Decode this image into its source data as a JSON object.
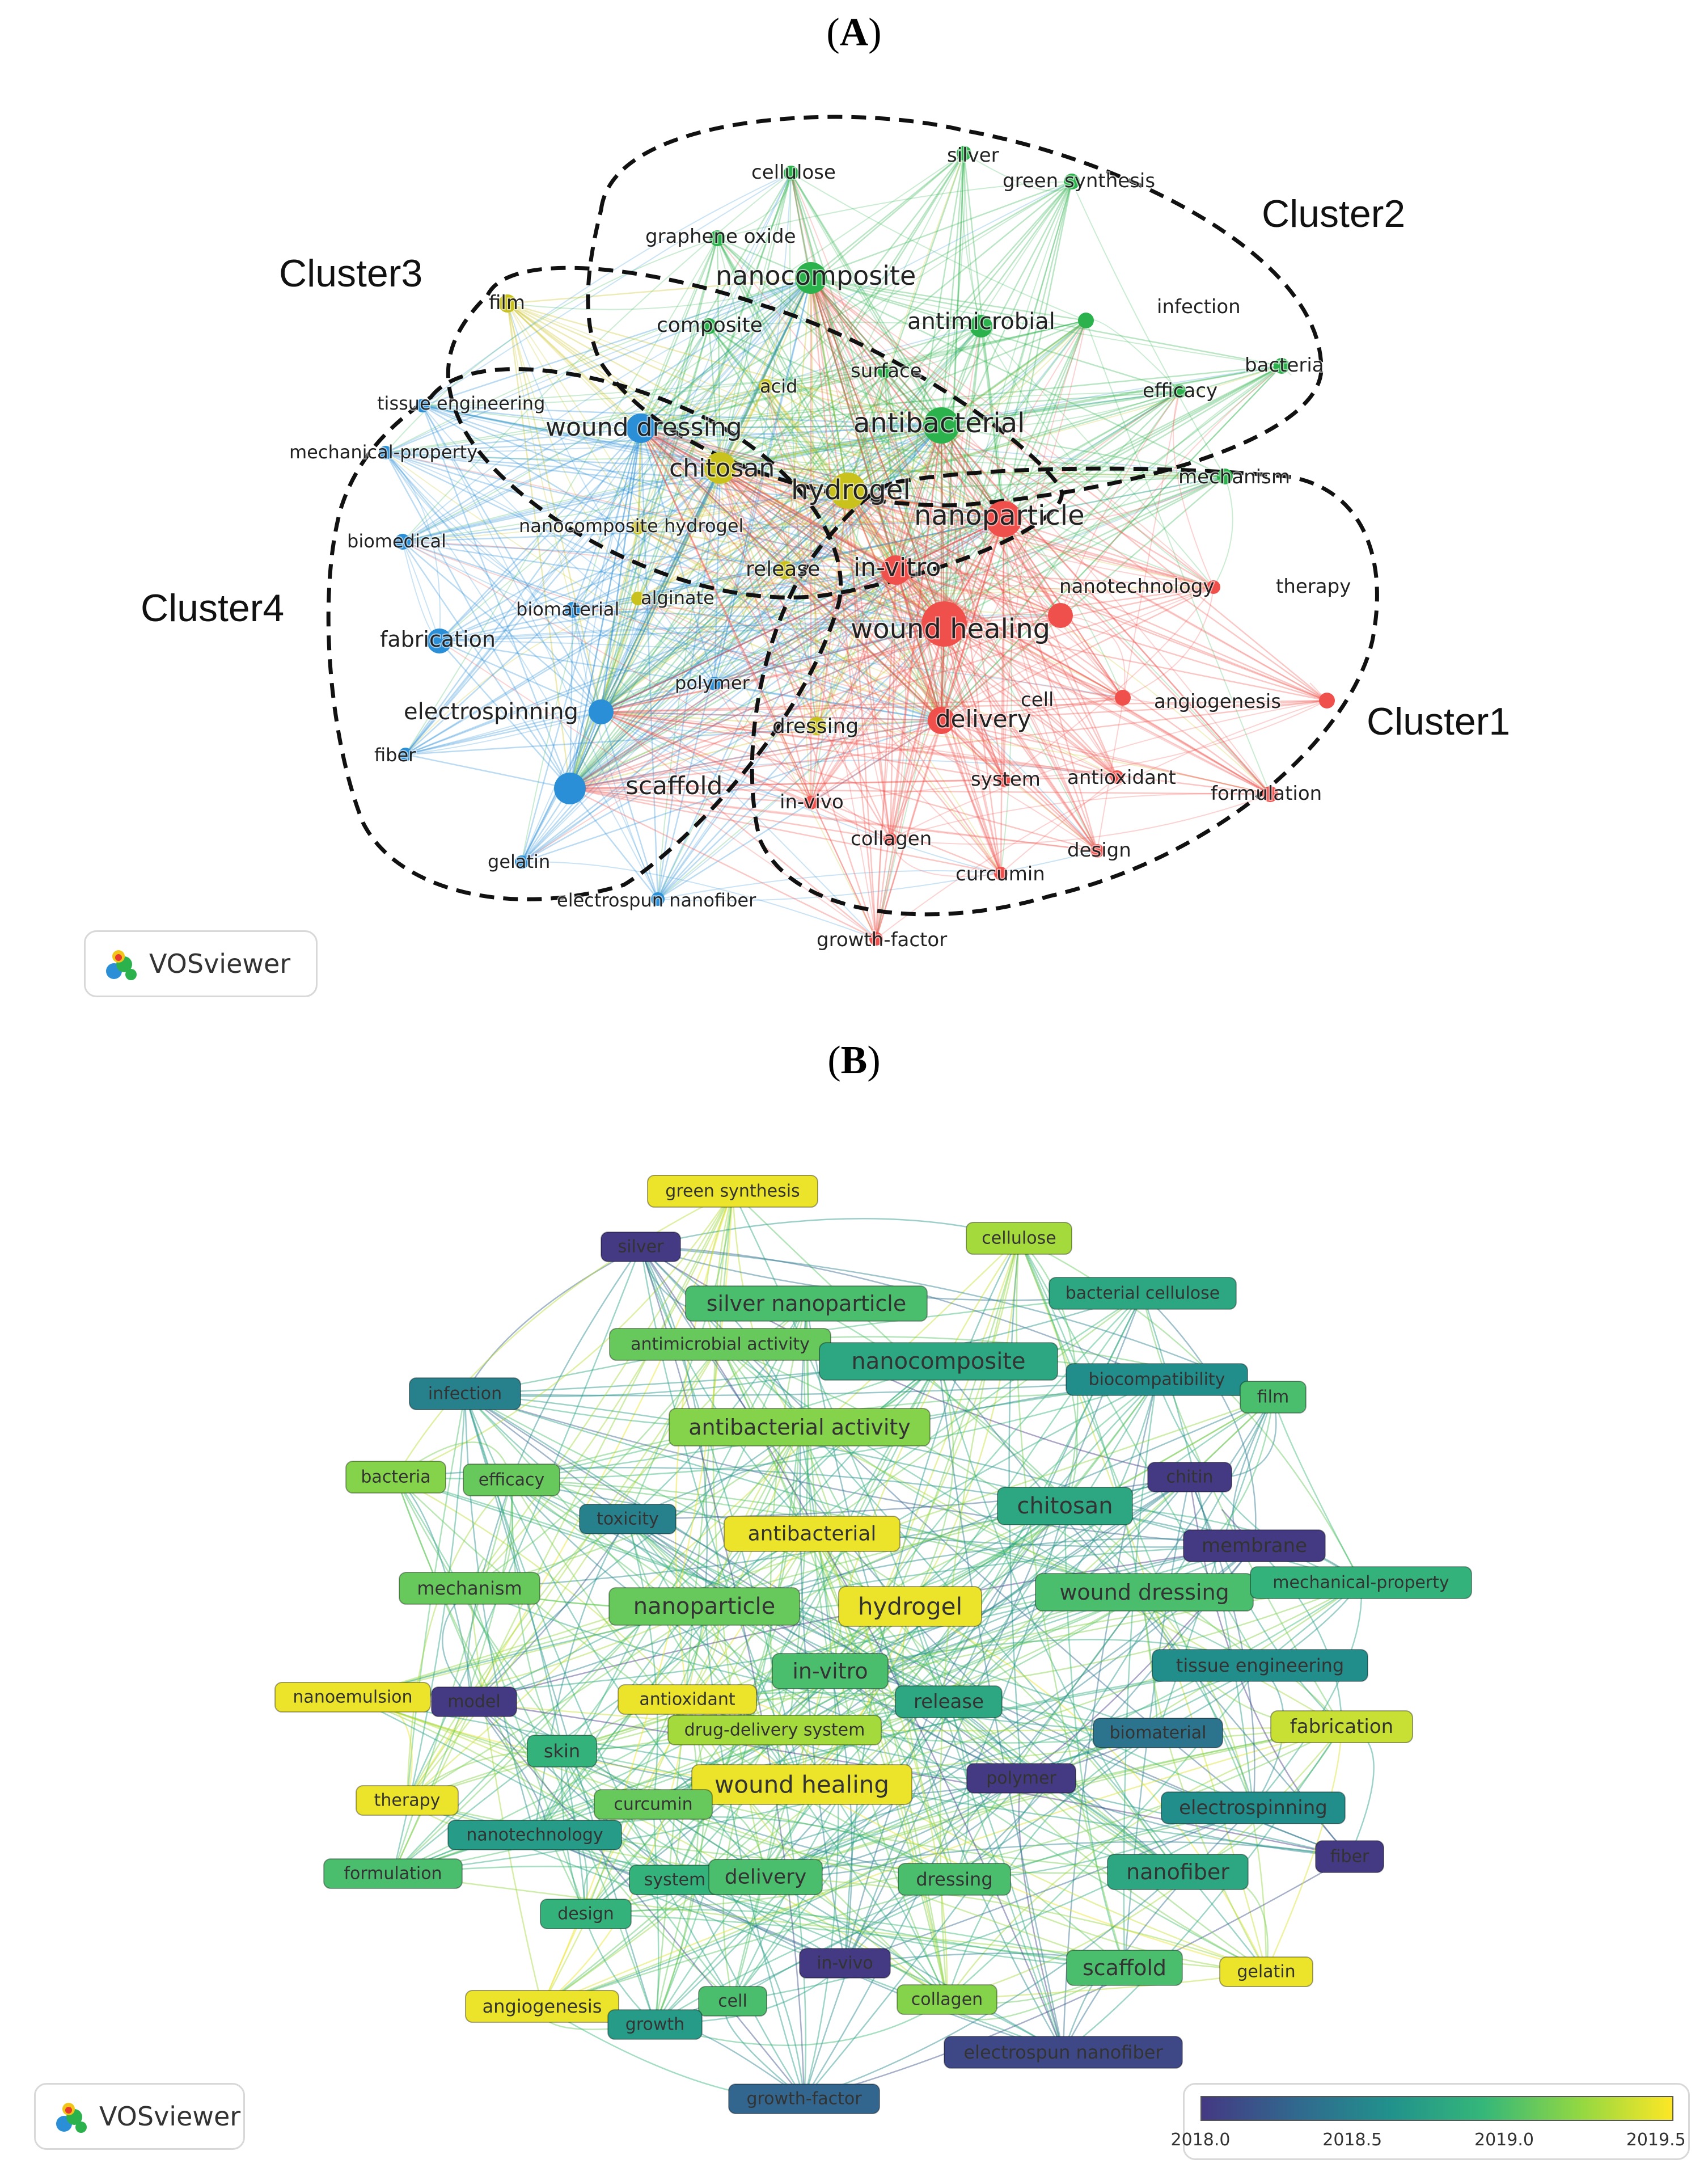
{
  "panel_a": {
    "title_letter": "A",
    "clusters": [
      "Cluster1",
      "Cluster2",
      "Cluster3",
      "Cluster4"
    ],
    "cluster_colors": {
      "cluster1": "#f0504c",
      "cluster2": "#2bb24c",
      "cluster3": "#c9c21d",
      "cluster4": "#2a8fd6"
    },
    "nodes": [
      {
        "label": "cellulose",
        "cluster": 2
      },
      {
        "label": "silver",
        "cluster": 2
      },
      {
        "label": "green synthesis",
        "cluster": 2
      },
      {
        "label": "graphene oxide",
        "cluster": 2
      },
      {
        "label": "nanocomposite",
        "cluster": 2
      },
      {
        "label": "antimicrobial",
        "cluster": 2
      },
      {
        "label": "infection",
        "cluster": 2
      },
      {
        "label": "bacteria",
        "cluster": 2
      },
      {
        "label": "efficacy",
        "cluster": 2
      },
      {
        "label": "composite",
        "cluster": 2
      },
      {
        "label": "surface",
        "cluster": 2
      },
      {
        "label": "antibacterial",
        "cluster": 2
      },
      {
        "label": "mechanism",
        "cluster": 2
      },
      {
        "label": "film",
        "cluster": 3
      },
      {
        "label": "acid",
        "cluster": 3
      },
      {
        "label": "chitosan",
        "cluster": 3
      },
      {
        "label": "hydrogel",
        "cluster": 3
      },
      {
        "label": "nanocomposite hydrogel",
        "cluster": 3
      },
      {
        "label": "release",
        "cluster": 3
      },
      {
        "label": "alginate",
        "cluster": 3
      },
      {
        "label": "dressing",
        "cluster": 3
      },
      {
        "label": "tissue engineering",
        "cluster": 4
      },
      {
        "label": "mechanical-property",
        "cluster": 4
      },
      {
        "label": "wound dressing",
        "cluster": 4
      },
      {
        "label": "biomedical",
        "cluster": 4
      },
      {
        "label": "biomaterial",
        "cluster": 4
      },
      {
        "label": "fabrication",
        "cluster": 4
      },
      {
        "label": "polymer",
        "cluster": 4
      },
      {
        "label": "electrospinning",
        "cluster": 4
      },
      {
        "label": "fiber",
        "cluster": 4
      },
      {
        "label": "scaffold",
        "cluster": 4
      },
      {
        "label": "gelatin",
        "cluster": 4
      },
      {
        "label": "electrospun nanofiber",
        "cluster": 4
      },
      {
        "label": "nanoparticle",
        "cluster": 1
      },
      {
        "label": "in-vitro",
        "cluster": 1
      },
      {
        "label": "nanotechnology",
        "cluster": 1
      },
      {
        "label": "therapy",
        "cluster": 1
      },
      {
        "label": "wound healing",
        "cluster": 1
      },
      {
        "label": "cell",
        "cluster": 1
      },
      {
        "label": "angiogenesis",
        "cluster": 1
      },
      {
        "label": "delivery",
        "cluster": 1
      },
      {
        "label": "system",
        "cluster": 1
      },
      {
        "label": "antioxidant",
        "cluster": 1
      },
      {
        "label": "formulation",
        "cluster": 1
      },
      {
        "label": "in-vivo",
        "cluster": 1
      },
      {
        "label": "collagen",
        "cluster": 1
      },
      {
        "label": "design",
        "cluster": 1
      },
      {
        "label": "curcumin",
        "cluster": 1
      },
      {
        "label": "growth-factor",
        "cluster": 1
      }
    ],
    "watermark": "VOSviewer"
  },
  "panel_b": {
    "title_letter": "B",
    "items": [
      {
        "label": "green synthesis",
        "year": 2019.5
      },
      {
        "label": "cellulose",
        "year": 2019.3
      },
      {
        "label": "silver",
        "year": 2018.0
      },
      {
        "label": "bacterial cellulose",
        "year": 2018.8
      },
      {
        "label": "silver nanoparticle",
        "year": 2019.0
      },
      {
        "label": "antimicrobial activity",
        "year": 2019.1
      },
      {
        "label": "nanocomposite",
        "year": 2018.8
      },
      {
        "label": "biocompatibility",
        "year": 2018.6
      },
      {
        "label": "film",
        "year": 2019.0
      },
      {
        "label": "infection",
        "year": 2018.5
      },
      {
        "label": "antibacterial activity",
        "year": 2019.2
      },
      {
        "label": "bacteria",
        "year": 2019.2
      },
      {
        "label": "efficacy",
        "year": 2019.1
      },
      {
        "label": "chitin",
        "year": 2018.0
      },
      {
        "label": "toxicity",
        "year": 2018.5
      },
      {
        "label": "antibacterial",
        "year": 2019.5
      },
      {
        "label": "chitosan",
        "year": 2018.8
      },
      {
        "label": "membrane",
        "year": 2018.0
      },
      {
        "label": "mechanism",
        "year": 2019.1
      },
      {
        "label": "nanoparticle",
        "year": 2019.1
      },
      {
        "label": "hydrogel",
        "year": 2019.5
      },
      {
        "label": "wound dressing",
        "year": 2019.0
      },
      {
        "label": "mechanical-property",
        "year": 2018.9
      },
      {
        "label": "in-vitro",
        "year": 2019.0
      },
      {
        "label": "tissue engineering",
        "year": 2018.6
      },
      {
        "label": "nanoemulsion",
        "year": 2019.5
      },
      {
        "label": "model",
        "year": 2018.0
      },
      {
        "label": "antioxidant",
        "year": 2019.5
      },
      {
        "label": "release",
        "year": 2018.8
      },
      {
        "label": "drug-delivery system",
        "year": 2019.3
      },
      {
        "label": "biomaterial",
        "year": 2018.4
      },
      {
        "label": "fabrication",
        "year": 2019.4
      },
      {
        "label": "skin",
        "year": 2018.9
      },
      {
        "label": "wound healing",
        "year": 2019.5
      },
      {
        "label": "polymer",
        "year": 2018.0
      },
      {
        "label": "therapy",
        "year": 2019.5
      },
      {
        "label": "curcumin",
        "year": 2019.1
      },
      {
        "label": "electrospinning",
        "year": 2018.6
      },
      {
        "label": "nanotechnology",
        "year": 2018.7
      },
      {
        "label": "fiber",
        "year": 2018.0
      },
      {
        "label": "formulation",
        "year": 2019.0
      },
      {
        "label": "system",
        "year": 2018.9
      },
      {
        "label": "delivery",
        "year": 2019.0
      },
      {
        "label": "dressing",
        "year": 2019.0
      },
      {
        "label": "nanofiber",
        "year": 2018.8
      },
      {
        "label": "design",
        "year": 2018.9
      },
      {
        "label": "in-vivo",
        "year": 2018.0
      },
      {
        "label": "scaffold",
        "year": 2019.0
      },
      {
        "label": "gelatin",
        "year": 2019.5
      },
      {
        "label": "angiogenesis",
        "year": 2019.5
      },
      {
        "label": "cell",
        "year": 2019.0
      },
      {
        "label": "collagen",
        "year": 2019.2
      },
      {
        "label": "growth",
        "year": 2018.7
      },
      {
        "label": "electrospun nanofiber",
        "year": 2018.1
      },
      {
        "label": "growth-factor",
        "year": 2018.3
      }
    ],
    "colorbar": {
      "ticks": [
        "2018.0",
        "2018.5",
        "2019.0",
        "2019.5"
      ],
      "range": [
        2018.0,
        2019.55
      ]
    },
    "watermark": "VOSviewer"
  }
}
